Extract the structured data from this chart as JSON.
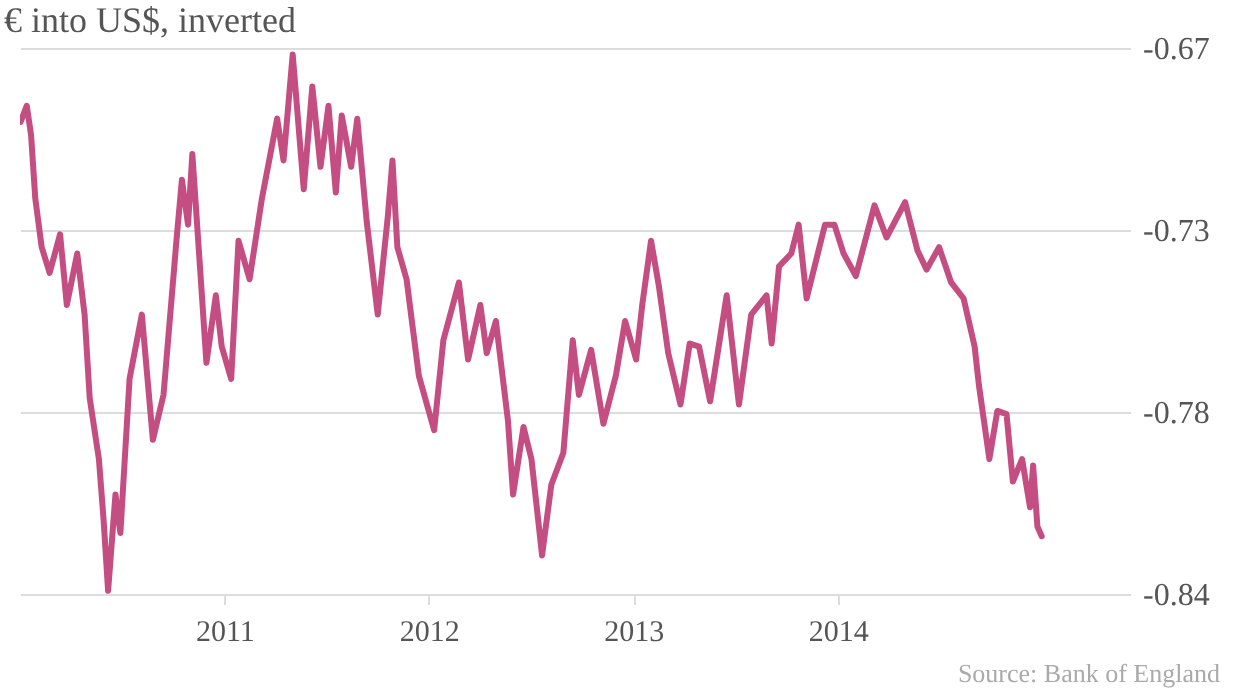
{
  "chart_data": {
    "type": "line",
    "title": "€ into US$, inverted",
    "annotations": [
      "Source: Bank of England"
    ],
    "x": [
      2010.003,
      2010.033,
      2010.054,
      2010.075,
      2010.106,
      2010.145,
      2010.196,
      2010.229,
      2010.28,
      2010.316,
      2010.341,
      2010.386,
      2010.409,
      2010.431,
      2010.467,
      2010.491,
      2010.536,
      2010.596,
      2010.65,
      2010.702,
      2010.768,
      2010.792,
      2010.822,
      2010.843,
      2010.876,
      2010.912,
      2010.958,
      2010.987,
      2011.033,
      2011.069,
      2011.123,
      2011.183,
      2011.258,
      2011.289,
      2011.334,
      2011.388,
      2011.43,
      2011.47,
      2011.509,
      2011.545,
      2011.574,
      2011.62,
      2011.65,
      2011.696,
      2011.75,
      2011.8,
      2011.822,
      2011.846,
      2011.891,
      2011.951,
      2012.026,
      2012.071,
      2012.147,
      2012.192,
      2012.252,
      2012.283,
      2012.328,
      2012.387,
      2012.412,
      2012.463,
      2012.502,
      2012.554,
      2012.599,
      2012.658,
      2012.704,
      2012.734,
      2012.794,
      2012.854,
      2012.915,
      2012.96,
      2013.014,
      2013.044,
      2013.087,
      2013.125,
      2013.171,
      2013.231,
      2013.276,
      2013.322,
      2013.376,
      2013.457,
      2013.517,
      2013.577,
      2013.652,
      2013.677,
      2013.713,
      2013.773,
      2013.809,
      2013.848,
      2013.938,
      2013.984,
      2014.029,
      2014.089,
      2014.18,
      2014.239,
      2014.33,
      2014.39,
      2014.435,
      2014.496,
      2014.555,
      2014.616,
      2014.67,
      2014.691,
      2014.742,
      2014.781,
      2014.826,
      2014.857,
      2014.902,
      2014.941,
      2014.956,
      2014.977,
      2014.998
    ],
    "series": [
      {
        "color": "#c44d82",
        "values": [
          -0.693,
          -0.688,
          -0.697,
          -0.717,
          -0.732,
          -0.74,
          -0.728,
          -0.75,
          -0.734,
          -0.753,
          -0.779,
          -0.798,
          -0.817,
          -0.839,
          -0.809,
          -0.821,
          -0.773,
          -0.753,
          -0.792,
          -0.778,
          -0.728,
          -0.711,
          -0.725,
          -0.703,
          -0.734,
          -0.768,
          -0.747,
          -0.763,
          -0.773,
          -0.73,
          -0.742,
          -0.717,
          -0.692,
          -0.705,
          -0.672,
          -0.714,
          -0.682,
          -0.707,
          -0.688,
          -0.715,
          -0.691,
          -0.707,
          -0.692,
          -0.724,
          -0.753,
          -0.722,
          -0.705,
          -0.732,
          -0.742,
          -0.772,
          -0.789,
          -0.761,
          -0.743,
          -0.767,
          -0.75,
          -0.765,
          -0.755,
          -0.786,
          -0.809,
          -0.788,
          -0.798,
          -0.828,
          -0.806,
          -0.796,
          -0.761,
          -0.778,
          -0.764,
          -0.787,
          -0.772,
          -0.755,
          -0.767,
          -0.75,
          -0.73,
          -0.744,
          -0.765,
          -0.781,
          -0.762,
          -0.763,
          -0.78,
          -0.747,
          -0.781,
          -0.753,
          -0.747,
          -0.762,
          -0.738,
          -0.734,
          -0.725,
          -0.748,
          -0.725,
          -0.725,
          -0.734,
          -0.741,
          -0.719,
          -0.729,
          -0.718,
          -0.733,
          -0.739,
          -0.732,
          -0.743,
          -0.748,
          -0.763,
          -0.775,
          -0.798,
          -0.783,
          -0.784,
          -0.805,
          -0.798,
          -0.813,
          -0.8,
          -0.819,
          -0.822
        ]
      }
    ],
    "xlim": [
      2010,
      2015.43
    ],
    "xticks": [
      2011,
      2012,
      2013,
      2014
    ],
    "ylim": [
      -0.84,
      -0.67
    ],
    "yticks": [
      -0.67,
      {
        "value": -0.7267,
        "label": "-0.73"
      },
      {
        "value": -0.7833,
        "label": "-0.78"
      },
      -0.84
    ],
    "grid": "y",
    "marker": "none",
    "line_style": "solid"
  }
}
